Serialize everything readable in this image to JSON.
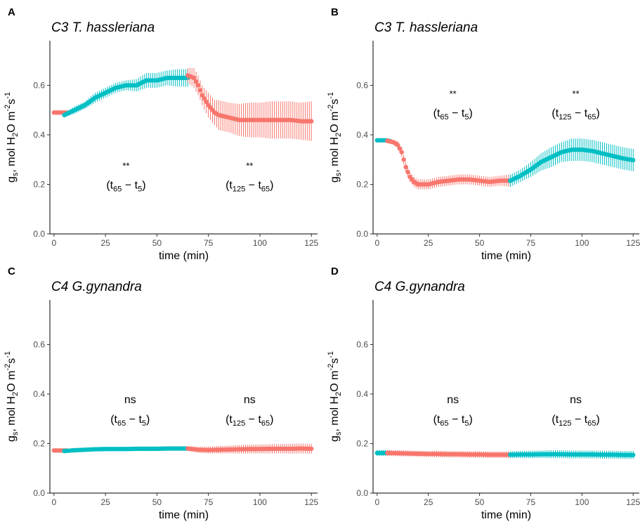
{
  "chart_data": [
    {
      "panel_label": "A",
      "type": "line",
      "title": "C3 T. hassleriana",
      "xlabel": "time (min)",
      "ylabel": {
        "g": "g",
        "sub1": "s",
        "rest": ", mol H",
        "sub2": "2",
        "o": "O m",
        "sup1": "-2",
        "s": "s",
        "sup2": "-1"
      },
      "xlim": [
        -2,
        128
      ],
      "ylim": [
        0,
        0.78
      ],
      "xticks": [
        0,
        25,
        50,
        75,
        100,
        125
      ],
      "yticks": [
        0.0,
        0.2,
        0.4,
        0.6
      ],
      "grid": false,
      "colors": {
        "red": "#F8766D",
        "teal": "#00BFC4"
      },
      "segments": [
        {
          "color": "red",
          "x": [
            0,
            2,
            4,
            6
          ],
          "y": [
            0.49,
            0.49,
            0.49,
            0.49
          ],
          "err": [
            0.008,
            0.008,
            0.008,
            0.008
          ]
        },
        {
          "color": "teal",
          "x": [
            5,
            10,
            15,
            20,
            25,
            30,
            35,
            40,
            45,
            50,
            55,
            60,
            65
          ],
          "y": [
            0.48,
            0.5,
            0.52,
            0.55,
            0.57,
            0.59,
            0.6,
            0.6,
            0.62,
            0.62,
            0.63,
            0.63,
            0.63
          ],
          "err": [
            0.01,
            0.015,
            0.015,
            0.02,
            0.02,
            0.02,
            0.02,
            0.025,
            0.03,
            0.03,
            0.03,
            0.035,
            0.035
          ]
        },
        {
          "color": "red",
          "x": [
            65,
            68,
            70,
            72,
            75,
            78,
            80,
            85,
            90,
            95,
            100,
            105,
            110,
            115,
            120,
            125
          ],
          "y": [
            0.64,
            0.63,
            0.6,
            0.56,
            0.52,
            0.49,
            0.48,
            0.47,
            0.46,
            0.46,
            0.46,
            0.46,
            0.46,
            0.46,
            0.455,
            0.455
          ],
          "err": [
            0.03,
            0.04,
            0.04,
            0.04,
            0.05,
            0.05,
            0.06,
            0.06,
            0.065,
            0.07,
            0.07,
            0.075,
            0.075,
            0.075,
            0.075,
            0.08
          ]
        }
      ],
      "annotations": [
        {
          "x": 35,
          "y": 0.2,
          "sig": "**",
          "t_a": "65",
          "t_b": "5"
        },
        {
          "x": 95,
          "y": 0.2,
          "sig": "**",
          "t_a": "125",
          "t_b": "65"
        }
      ]
    },
    {
      "panel_label": "B",
      "type": "line",
      "title": "C3 T. hassleriana",
      "xlabel": "time (min)",
      "ylabel": {
        "g": "g",
        "sub1": "s",
        "rest": ", mol H",
        "sub2": "2",
        "o": "O m",
        "sup1": "-2",
        "s": "s",
        "sup2": "-1"
      },
      "xlim": [
        -2,
        128
      ],
      "ylim": [
        0,
        0.78
      ],
      "xticks": [
        0,
        25,
        50,
        75,
        100,
        125
      ],
      "yticks": [
        0.0,
        0.2,
        0.4,
        0.6
      ],
      "grid": false,
      "colors": {
        "red": "#F8766D",
        "teal": "#00BFC4"
      },
      "segments": [
        {
          "color": "teal",
          "x": [
            0,
            2,
            4,
            6
          ],
          "y": [
            0.378,
            0.378,
            0.378,
            0.376
          ],
          "err": [
            0.008,
            0.008,
            0.008,
            0.008
          ]
        },
        {
          "color": "red",
          "x": [
            5,
            8,
            10,
            12,
            14,
            16,
            18,
            20,
            25,
            30,
            35,
            40,
            45,
            50,
            55,
            60,
            65
          ],
          "y": [
            0.376,
            0.37,
            0.36,
            0.33,
            0.27,
            0.23,
            0.21,
            0.2,
            0.2,
            0.21,
            0.215,
            0.22,
            0.22,
            0.215,
            0.21,
            0.215,
            0.215
          ],
          "err": [
            0.01,
            0.01,
            0.015,
            0.02,
            0.02,
            0.02,
            0.02,
            0.02,
            0.02,
            0.02,
            0.02,
            0.02,
            0.02,
            0.02,
            0.02,
            0.02,
            0.025
          ]
        },
        {
          "color": "teal",
          "x": [
            65,
            70,
            75,
            80,
            85,
            90,
            95,
            100,
            105,
            110,
            115,
            120,
            125
          ],
          "y": [
            0.215,
            0.235,
            0.26,
            0.29,
            0.31,
            0.33,
            0.34,
            0.34,
            0.335,
            0.325,
            0.315,
            0.305,
            0.298
          ],
          "err": [
            0.025,
            0.025,
            0.03,
            0.035,
            0.04,
            0.04,
            0.045,
            0.045,
            0.045,
            0.045,
            0.045,
            0.045,
            0.045
          ]
        }
      ],
      "annotations": [
        {
          "x": 37,
          "y": 0.49,
          "sig": "**",
          "t_a": "65",
          "t_b": "5"
        },
        {
          "x": 97,
          "y": 0.49,
          "sig": "**",
          "t_a": "125",
          "t_b": "65"
        }
      ]
    },
    {
      "panel_label": "C",
      "type": "line",
      "title": "C4 G.gynandra",
      "xlabel": "time (min)",
      "ylabel": {
        "g": "g",
        "sub1": "s",
        "rest": ", mol H",
        "sub2": "2",
        "o": "O m",
        "sup1": "-2",
        "s": "s",
        "sup2": "-1"
      },
      "xlim": [
        -2,
        128
      ],
      "ylim": [
        0,
        0.78
      ],
      "xticks": [
        0,
        25,
        50,
        75,
        100,
        125
      ],
      "yticks": [
        0.0,
        0.2,
        0.4,
        0.6
      ],
      "grid": false,
      "colors": {
        "red": "#F8766D",
        "teal": "#00BFC4"
      },
      "segments": [
        {
          "color": "red",
          "x": [
            0,
            2,
            4,
            6
          ],
          "y": [
            0.172,
            0.172,
            0.172,
            0.172
          ],
          "err": [
            0.006,
            0.006,
            0.006,
            0.006
          ]
        },
        {
          "color": "teal",
          "x": [
            5,
            10,
            15,
            20,
            25,
            30,
            35,
            40,
            45,
            50,
            55,
            60,
            65
          ],
          "y": [
            0.17,
            0.173,
            0.175,
            0.177,
            0.178,
            0.178,
            0.178,
            0.179,
            0.179,
            0.179,
            0.18,
            0.18,
            0.18
          ],
          "err": [
            0.006,
            0.007,
            0.008,
            0.008,
            0.008,
            0.008,
            0.009,
            0.009,
            0.009,
            0.009,
            0.009,
            0.009,
            0.009
          ]
        },
        {
          "color": "red",
          "x": [
            65,
            70,
            75,
            80,
            85,
            90,
            95,
            100,
            105,
            110,
            115,
            120,
            125
          ],
          "y": [
            0.18,
            0.175,
            0.174,
            0.175,
            0.176,
            0.177,
            0.178,
            0.178,
            0.179,
            0.179,
            0.179,
            0.18,
            0.179
          ],
          "err": [
            0.01,
            0.012,
            0.014,
            0.015,
            0.016,
            0.017,
            0.018,
            0.018,
            0.019,
            0.019,
            0.02,
            0.02,
            0.02
          ]
        }
      ],
      "annotations": [
        {
          "x": 37,
          "y": 0.3,
          "sig": "ns",
          "t_a": "65",
          "t_b": "5"
        },
        {
          "x": 95,
          "y": 0.3,
          "sig": "ns",
          "t_a": "125",
          "t_b": "65"
        }
      ]
    },
    {
      "panel_label": "D",
      "type": "line",
      "title": "C4 G.gynandra",
      "xlabel": "time (min)",
      "ylabel": {
        "g": "g",
        "sub1": "s",
        "rest": ", mol H",
        "sub2": "2",
        "o": "O m",
        "sup1": "-2",
        "s": "s",
        "sup2": "-1"
      },
      "xlim": [
        -2,
        128
      ],
      "ylim": [
        0,
        0.78
      ],
      "xticks": [
        0,
        25,
        50,
        75,
        100,
        125
      ],
      "yticks": [
        0.0,
        0.2,
        0.4,
        0.6
      ],
      "grid": false,
      "colors": {
        "red": "#F8766D",
        "teal": "#00BFC4"
      },
      "segments": [
        {
          "color": "teal",
          "x": [
            0,
            2,
            4,
            6
          ],
          "y": [
            0.162,
            0.162,
            0.162,
            0.162
          ],
          "err": [
            0.012,
            0.012,
            0.012,
            0.012
          ]
        },
        {
          "color": "red",
          "x": [
            5,
            10,
            15,
            20,
            25,
            30,
            35,
            40,
            45,
            50,
            55,
            60,
            65
          ],
          "y": [
            0.162,
            0.161,
            0.16,
            0.159,
            0.158,
            0.158,
            0.157,
            0.157,
            0.156,
            0.156,
            0.155,
            0.155,
            0.155
          ],
          "err": [
            0.012,
            0.012,
            0.012,
            0.012,
            0.012,
            0.013,
            0.013,
            0.013,
            0.013,
            0.013,
            0.013,
            0.013,
            0.013
          ]
        },
        {
          "color": "teal",
          "x": [
            65,
            70,
            75,
            80,
            85,
            90,
            95,
            100,
            105,
            110,
            115,
            120,
            125
          ],
          "y": [
            0.155,
            0.156,
            0.156,
            0.157,
            0.157,
            0.157,
            0.156,
            0.156,
            0.156,
            0.155,
            0.155,
            0.154,
            0.154
          ],
          "err": [
            0.014,
            0.015,
            0.015,
            0.015,
            0.016,
            0.016,
            0.016,
            0.016,
            0.016,
            0.016,
            0.016,
            0.016,
            0.016
          ]
        }
      ],
      "annotations": [
        {
          "x": 37,
          "y": 0.3,
          "sig": "ns",
          "t_a": "65",
          "t_b": "5"
        },
        {
          "x": 97,
          "y": 0.3,
          "sig": "ns",
          "t_a": "125",
          "t_b": "65"
        }
      ]
    }
  ]
}
